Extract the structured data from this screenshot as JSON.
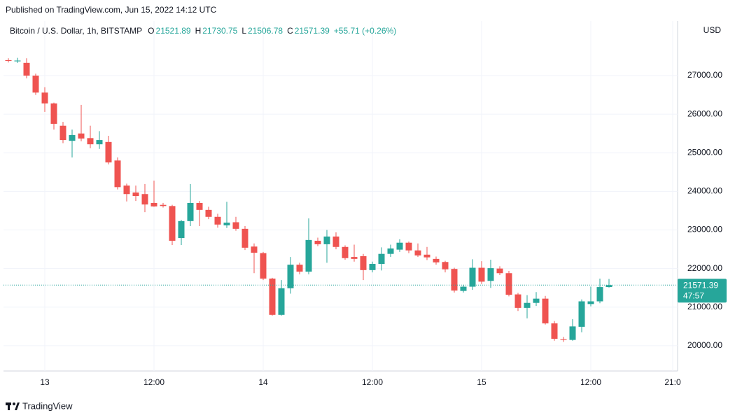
{
  "published": "Published on TradingView.com, Jun 15, 2022 14:12 UTC",
  "brand": "TradingView",
  "chart_data": {
    "type": "candlestick",
    "title": "Bitcoin / U.S. Dollar, 1h, BITSTAMP",
    "ohlc_labels": [
      "O",
      "H",
      "L",
      "C"
    ],
    "change": "+55.71 (+0.26%)",
    "currency": "USD",
    "countdown": "47:57",
    "up_color": "#26a69a",
    "down_color": "#ef5350",
    "grid": true,
    "categories": [
      null,
      null,
      null,
      null,
      "13",
      null,
      null,
      null,
      null,
      null,
      null,
      null,
      null,
      null,
      null,
      null,
      "12:00",
      null,
      null,
      null,
      null,
      null,
      null,
      null,
      null,
      null,
      null,
      null,
      "14",
      null,
      null,
      null,
      null,
      null,
      null,
      null,
      null,
      null,
      null,
      null,
      "12:00",
      null,
      null,
      null,
      null,
      null,
      null,
      null,
      null,
      null,
      null,
      null,
      "15",
      null,
      null,
      null,
      null,
      null,
      null,
      null,
      null,
      null,
      null,
      null,
      "12:00",
      null,
      null,
      null,
      null,
      null,
      null,
      null,
      null,
      "21:0"
    ],
    "open": [
      27400,
      27370,
      27330,
      27000,
      26560,
      26280,
      25700,
      25310,
      25500,
      25380,
      25220,
      25280,
      24800,
      24150,
      23970,
      23930,
      23700,
      23650,
      23620,
      22790,
      23230,
      23700,
      23520,
      23340,
      23120,
      23200,
      23030,
      22570,
      22400,
      21740,
      20800,
      21490,
      22100,
      21920,
      22720,
      22630,
      22830,
      22560,
      22300,
      22320,
      21960,
      22120,
      22380,
      22490,
      22670,
      22470,
      22360,
      22250,
      22170,
      21990,
      21420,
      21530,
      22020,
      21680,
      22000,
      21880,
      21330,
      20980,
      21110,
      21220,
      20580,
      20170,
      20150,
      20490,
      21080,
      21150,
      21521.89,
      null,
      null,
      null,
      null,
      null,
      null,
      null
    ],
    "high": [
      27450,
      27460,
      27450,
      27050,
      26700,
      26300,
      25800,
      25600,
      26240,
      25700,
      25560,
      25440,
      24880,
      24200,
      24150,
      24190,
      24280,
      23700,
      23650,
      23260,
      24190,
      23750,
      23600,
      23420,
      23730,
      23340,
      23100,
      22650,
      22430,
      21760,
      21700,
      22300,
      22150,
      23300,
      22800,
      23000,
      22940,
      22600,
      22620,
      22380,
      22180,
      22550,
      22620,
      22760,
      22700,
      22650,
      22560,
      22310,
      22200,
      22020,
      21580,
      22240,
      22190,
      22230,
      22060,
      21940,
      21370,
      21310,
      21390,
      21290,
      20640,
      20230,
      20690,
      21200,
      21530,
      21740,
      21730.75,
      null,
      null,
      null,
      null,
      null,
      null,
      null
    ],
    "low": [
      27340,
      27330,
      26930,
      26500,
      26060,
      25600,
      25250,
      24880,
      25300,
      25120,
      25100,
      24700,
      24050,
      23740,
      23750,
      23460,
      23600,
      23580,
      22610,
      22610,
      23100,
      23100,
      23280,
      23060,
      23050,
      22980,
      22480,
      21880,
      21700,
      20780,
      20780,
      21350,
      21850,
      21850,
      22580,
      22150,
      22500,
      22230,
      22180,
      21700,
      21900,
      21950,
      22300,
      22430,
      22400,
      22300,
      22220,
      22100,
      21900,
      21380,
      21380,
      21450,
      21600,
      21500,
      21830,
      21280,
      20900,
      20710,
      21030,
      20550,
      20130,
      20100,
      20130,
      20350,
      21020,
      21100,
      21506.78,
      null,
      null,
      null,
      null,
      null,
      null,
      null
    ],
    "close": [
      27380,
      27390,
      27000,
      26560,
      26280,
      25750,
      25330,
      25460,
      25370,
      25220,
      25330,
      24750,
      24110,
      23930,
      23880,
      23660,
      23610,
      23620,
      22720,
      23230,
      23700,
      23520,
      23340,
      23140,
      23190,
      23030,
      22540,
      22410,
      21740,
      20800,
      21490,
      22100,
      21920,
      22740,
      22630,
      22830,
      22560,
      22270,
      22250,
      21960,
      22120,
      22380,
      22520,
      22670,
      22470,
      22340,
      22290,
      22160,
      21980,
      21430,
      21530,
      22020,
      21660,
      22010,
      21880,
      21320,
      20980,
      21110,
      21220,
      20580,
      20180,
      20150,
      20500,
      21150,
      21150,
      21520,
      21571.39,
      null,
      null,
      null,
      null,
      null,
      null,
      null
    ],
    "ylim": [
      19345,
      28415
    ],
    "yticks": [
      {
        "value": 20000,
        "label": "20000.00"
      },
      {
        "value": 21000,
        "label": "21000.00"
      },
      {
        "value": 22000,
        "label": "22000.00"
      },
      {
        "value": 23000,
        "label": "23000.00"
      },
      {
        "value": 24000,
        "label": "24000.00"
      },
      {
        "value": 25000,
        "label": "25000.00"
      },
      {
        "value": 26000,
        "label": "26000.00"
      },
      {
        "value": 27000,
        "label": "27000.00"
      }
    ]
  }
}
